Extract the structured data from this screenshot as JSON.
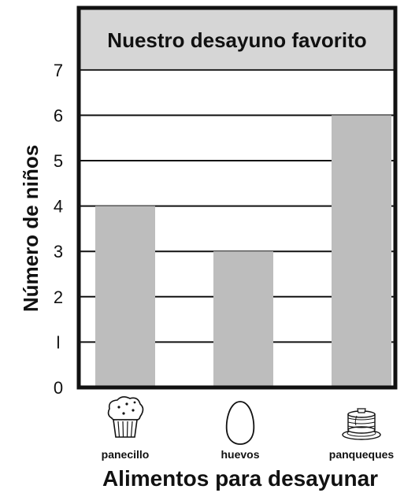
{
  "chart_data": {
    "type": "bar",
    "title": "Nuestro desayuno favorito",
    "xlabel": "Alimentos para desayunar",
    "ylabel": "Número de niños",
    "categories": [
      "panecillo",
      "huevos",
      "panqueques"
    ],
    "values": [
      4,
      3,
      6
    ],
    "ylim": [
      0,
      7
    ],
    "yticks": [
      {
        "value": 0,
        "label": "0"
      },
      {
        "value": 1,
        "label": "l"
      },
      {
        "value": 2,
        "label": "2"
      },
      {
        "value": 3,
        "label": "3"
      },
      {
        "value": 4,
        "label": "4"
      },
      {
        "value": 5,
        "label": "5"
      },
      {
        "value": 6,
        "label": "6"
      },
      {
        "value": 7,
        "label": "7"
      }
    ],
    "grid": true,
    "colors": {
      "bar": "#bdbdbd",
      "title_band": "#d6d6d6",
      "line": "#111111"
    },
    "category_icons": [
      "muffin-icon",
      "egg-icon",
      "pancakes-icon"
    ]
  }
}
